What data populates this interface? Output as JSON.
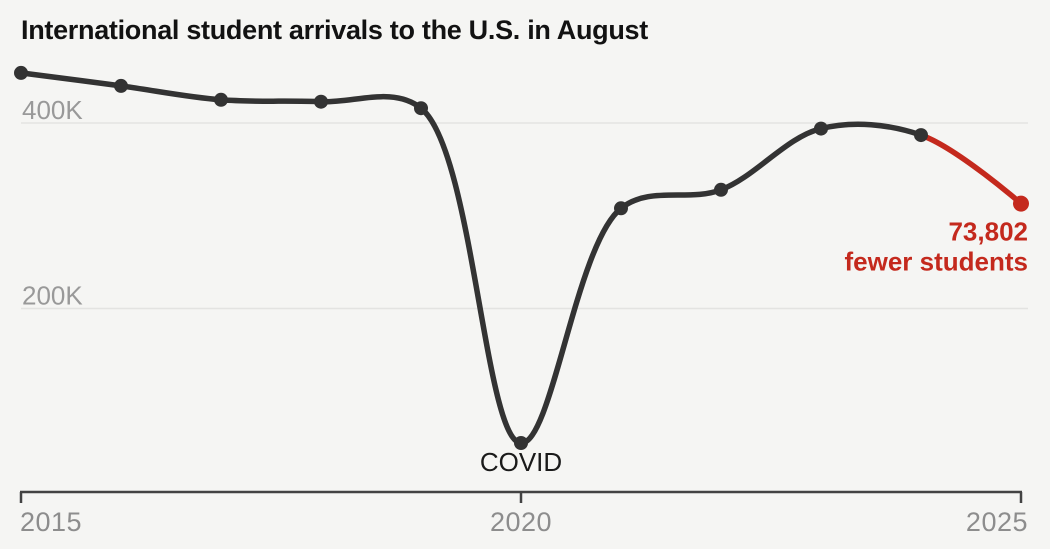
{
  "colors": {
    "background": "#f5f5f3",
    "line": "#333333",
    "highlight": "#c4291d",
    "grid": "#e3e3e1",
    "axis": "#434343",
    "axis_label": "#8d8d8d",
    "grid_label": "#999999",
    "title": "#121212",
    "covid_label": "#1a1a1a"
  },
  "chart_data": {
    "type": "line",
    "title": "International student arrivals to the U.S. in August",
    "x": [
      2015,
      2016,
      2017,
      2018,
      2019,
      2020,
      2021,
      2022,
      2023,
      2024,
      2025
    ],
    "series": [
      {
        "name": "August arrivals",
        "values": [
          454000,
          440000,
          425000,
          423000,
          416000,
          55000,
          308000,
          328000,
          394000,
          386940,
          313138
        ]
      }
    ],
    "xlim": [
      2015,
      2025
    ],
    "ylim": [
      0,
      480000
    ],
    "grid": "horizontal-only",
    "legend": "none",
    "y_gridlines": [
      {
        "value": 400000,
        "label": "400K"
      },
      {
        "value": 200000,
        "label": "200K"
      }
    ],
    "x_ticks": [
      {
        "value": 2015,
        "label": "2015"
      },
      {
        "value": 2020,
        "label": "2020"
      },
      {
        "value": 2025,
        "label": "2025"
      }
    ],
    "highlight": {
      "from_x": 2024,
      "to_x": 2025,
      "note_value": "73,802",
      "note_label": "fewer students"
    },
    "covid_annotation": {
      "text": "COVID",
      "x": 2020
    }
  }
}
